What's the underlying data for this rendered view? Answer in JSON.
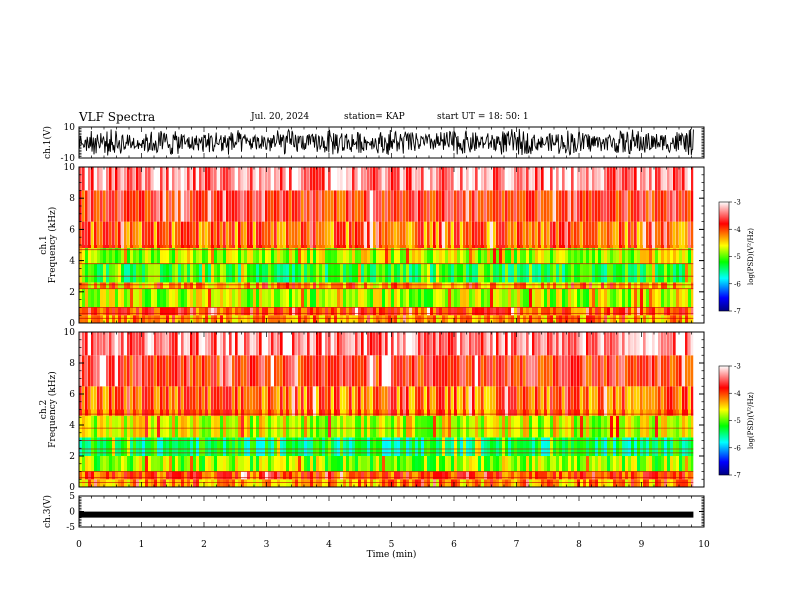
{
  "header": {
    "title": "VLF Spectra",
    "date": "Jul. 20, 2024",
    "station": "station= KAP",
    "start": "start UT =  18: 50: 1"
  },
  "chart_data": [
    {
      "type": "line",
      "panel": "ch1-waveform",
      "ylabel": "ch.1(V)",
      "ylim": [
        -10,
        10
      ],
      "yticks": [
        "10",
        "-10"
      ],
      "xlim": [
        0,
        10
      ],
      "x_end": 9.83,
      "description_visible": "dense black waveform oscillating roughly between -8 and 8 V"
    },
    {
      "type": "heatmap",
      "panel": "ch1-spectrogram",
      "ylabel": "ch.1\nFrequency (kHz)",
      "ylim": [
        0,
        10
      ],
      "yticks": [
        "0",
        "2",
        "4",
        "6",
        "8",
        "10"
      ],
      "xlim": [
        0,
        10
      ],
      "x_end": 9.83,
      "colorbar": {
        "label": "log(PSD)(V²/Hz)",
        "range": [
          -7,
          -3
        ],
        "ticks": [
          "-3",
          "-4",
          "-5",
          "-6",
          "-7"
        ]
      },
      "bands": [
        {
          "from": 0.0,
          "to": 0.5,
          "level": -4.3
        },
        {
          "from": 0.5,
          "to": 1.0,
          "level": -4.0
        },
        {
          "from": 1.0,
          "to": 2.2,
          "level": -4.8
        },
        {
          "from": 2.2,
          "to": 2.6,
          "level": -4.4
        },
        {
          "from": 2.6,
          "to": 3.8,
          "level": -5.2
        },
        {
          "from": 3.8,
          "to": 4.8,
          "level": -4.8
        },
        {
          "from": 4.8,
          "to": 6.5,
          "level": -4.1
        },
        {
          "from": 6.5,
          "to": 8.5,
          "level": -3.8
        },
        {
          "from": 8.5,
          "to": 10.0,
          "level": -3.4
        }
      ]
    },
    {
      "type": "heatmap",
      "panel": "ch2-spectrogram",
      "ylabel": "ch.2\nFrequency (kHz)",
      "ylim": [
        0,
        10
      ],
      "yticks": [
        "0",
        "2",
        "4",
        "6",
        "8",
        "10"
      ],
      "xlim": [
        0,
        10
      ],
      "x_end": 9.83,
      "colorbar": {
        "label": "log(PSD)(V²/Hz)",
        "range": [
          -7,
          -3
        ],
        "ticks": [
          "-3",
          "-4",
          "-5",
          "-6",
          "-7"
        ]
      },
      "bands": [
        {
          "from": 0.0,
          "to": 0.5,
          "level": -4.3
        },
        {
          "from": 0.5,
          "to": 1.0,
          "level": -4.0
        },
        {
          "from": 1.0,
          "to": 2.0,
          "level": -4.9
        },
        {
          "from": 2.0,
          "to": 3.2,
          "level": -5.4
        },
        {
          "from": 3.2,
          "to": 4.6,
          "level": -4.7
        },
        {
          "from": 4.6,
          "to": 6.5,
          "level": -4.1
        },
        {
          "from": 6.5,
          "to": 8.5,
          "level": -3.8
        },
        {
          "from": 8.5,
          "to": 10.0,
          "level": -3.4
        }
      ]
    },
    {
      "type": "line",
      "panel": "ch3-waveform",
      "ylabel": "ch.3(V)",
      "ylim": [
        -5,
        5
      ],
      "yticks": [
        "5",
        "0",
        "-5"
      ],
      "xlim": [
        0,
        10
      ],
      "x_end": 9.83,
      "level": -1.0
    }
  ],
  "xaxis": {
    "label": "Time (min)",
    "ticks": [
      "0",
      "1",
      "2",
      "3",
      "4",
      "5",
      "6",
      "7",
      "8",
      "9",
      "10"
    ]
  },
  "colors": {
    "trace": "#000000",
    "colormap": [
      "#000080",
      "#0000ff",
      "#00ffff",
      "#00ff00",
      "#ffff00",
      "#ff0000",
      "#ffffff"
    ]
  }
}
